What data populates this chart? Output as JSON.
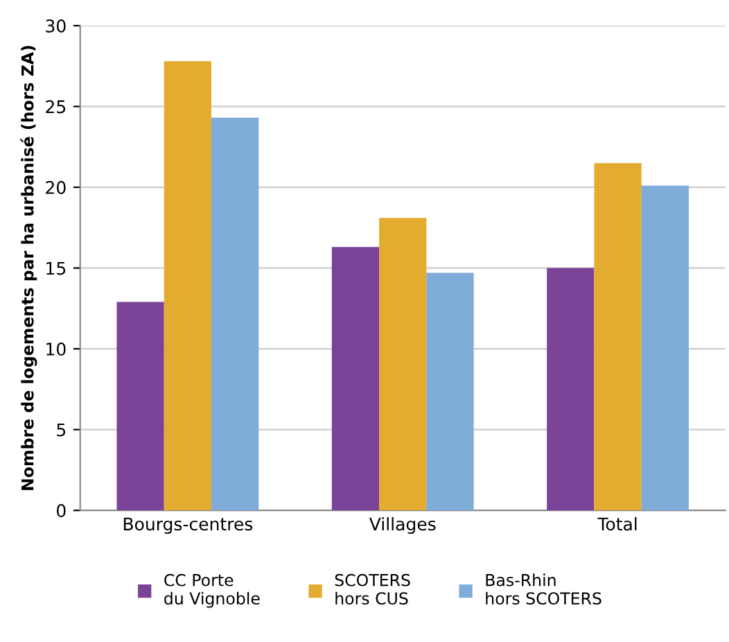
{
  "chart_data": {
    "type": "bar",
    "ylabel": "Nombre de logements par ha urbanisé (hors ZA)",
    "categories": [
      "Bourgs-centres",
      "Villages",
      "Total"
    ],
    "series": [
      {
        "name": "CC Porte\ndu Vignoble",
        "color": "#7b4397",
        "values": [
          12.9,
          16.3,
          15.0
        ]
      },
      {
        "name": "SCOTERS\nhors CUS",
        "color": "#e3ab2f",
        "values": [
          27.8,
          18.1,
          21.5
        ]
      },
      {
        "name": "Bas-Rhin\nhors SCOTERS",
        "color": "#80acd9",
        "values": [
          24.3,
          14.7,
          20.1
        ]
      }
    ],
    "ylim": [
      0,
      30
    ],
    "yticks": [
      0,
      5,
      10,
      15,
      20,
      25,
      30
    ],
    "grid": "y",
    "legend": "bottom"
  }
}
